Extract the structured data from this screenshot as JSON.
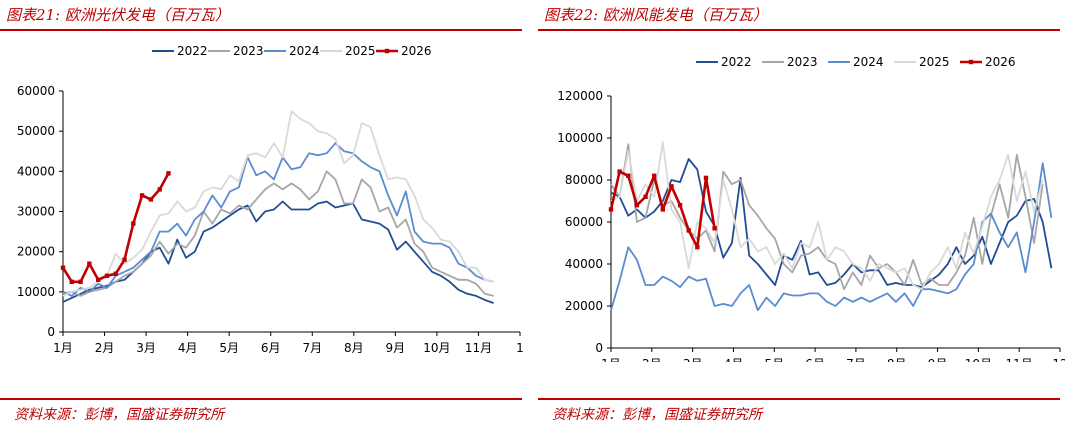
{
  "colors": {
    "2022": "#1f4e96",
    "2023": "#a6a6a6",
    "2024": "#5b8bd0",
    "2025": "#d9d9d9",
    "2026": "#c00000",
    "accent": "#c00000"
  },
  "left": {
    "title": "图表21: 欧洲光伏发电（百万瓦）",
    "source": "资料来源：彭博，国盛证券研究所"
  },
  "right": {
    "title": "图表22: 欧洲风能发电（百万瓦）",
    "source": "资料来源：彭博，国盛证券研究所"
  },
  "chart_data": [
    {
      "type": "line",
      "title": "图表21: 欧洲光伏发电（百万瓦）",
      "ylim": [
        0,
        60000
      ],
      "yticks": [
        0,
        10000,
        20000,
        30000,
        40000,
        50000,
        60000
      ],
      "xlim": [
        1,
        53
      ],
      "xtick_labels": [
        "1月",
        "2月",
        "3月",
        "4月",
        "5月",
        "6月",
        "7月",
        "8月",
        "9月",
        "10月",
        "11月",
        "1"
      ],
      "legend": "top",
      "series": [
        {
          "name": "2022",
          "values": [
            7500,
            8500,
            9500,
            10500,
            11000,
            11500,
            12500,
            13000,
            15000,
            17000,
            20000,
            21000,
            17000,
            23000,
            18500,
            20000,
            25000,
            26000,
            27500,
            29000,
            30500,
            31500,
            27500,
            30000,
            30500,
            32500,
            30500,
            30500,
            30500,
            32000,
            32500,
            31000,
            31500,
            32000,
            28000,
            27500,
            27000,
            25500,
            20500,
            22500,
            20000,
            17500,
            15000,
            14000,
            12500,
            10500,
            9500,
            9000,
            8000,
            7200
          ]
        },
        {
          "name": "2023",
          "values": [
            9500,
            10000,
            9000,
            10000,
            10500,
            11000,
            12500,
            14000,
            15000,
            17000,
            19000,
            22500,
            19500,
            22000,
            21000,
            24000,
            30000,
            27000,
            30500,
            29500,
            31500,
            30500,
            33000,
            35500,
            37000,
            35500,
            37000,
            35500,
            33000,
            35000,
            40000,
            38000,
            32000,
            32000,
            38000,
            36000,
            30000,
            31000,
            26000,
            28000,
            22000,
            20000,
            16000,
            15000,
            14000,
            13000,
            13000,
            12000,
            9500,
            9000
          ]
        },
        {
          "name": "2024",
          "values": [
            10000,
            9000,
            11000,
            10000,
            12000,
            11000,
            14000,
            15000,
            16000,
            18000,
            20000,
            25000,
            25000,
            27000,
            24000,
            28000,
            30000,
            34000,
            31000,
            35000,
            36000,
            43500,
            39000,
            40000,
            38000,
            43500,
            40500,
            41000,
            44500,
            44000,
            44500,
            47000,
            45000,
            44500,
            42500,
            41000,
            40000,
            34000,
            29000,
            35000,
            25000,
            22500,
            22000,
            22000,
            21000,
            17000,
            16000,
            14000,
            13000,
            12500
          ]
        },
        {
          "name": "2025",
          "values": [
            9000,
            10000,
            10500,
            11000,
            12500,
            14000,
            19500,
            17000,
            18500,
            20500,
            25000,
            29000,
            29500,
            32500,
            30000,
            31000,
            35000,
            36000,
            35500,
            39000,
            37500,
            44000,
            44500,
            43500,
            47000,
            43500,
            55000,
            53000,
            52000,
            50000,
            49500,
            48000,
            42000,
            44000,
            52000,
            51000,
            44000,
            38000,
            38500,
            38000,
            34000,
            28000,
            26000,
            23000,
            22500,
            20000,
            16000,
            16000,
            13000,
            12500
          ]
        },
        {
          "name": "2026",
          "values": [
            16000,
            12500,
            12500,
            17000,
            13000,
            14000,
            14500,
            18000,
            27000,
            34000,
            33000,
            35500,
            39500
          ]
        }
      ]
    },
    {
      "type": "line",
      "title": "图表22: 欧洲风能发电（百万瓦）",
      "ylim": [
        0,
        120000
      ],
      "yticks": [
        0,
        20000,
        40000,
        60000,
        80000,
        100000,
        120000
      ],
      "xlim": [
        1,
        53
      ],
      "xtick_labels": [
        "1月",
        "2月",
        "3月",
        "4月",
        "5月",
        "6月",
        "7月",
        "8月",
        "9月",
        "10月",
        "11月",
        "12"
      ],
      "legend": "top",
      "series": [
        {
          "name": "2022",
          "values": [
            74000,
            72000,
            63000,
            66000,
            62000,
            65000,
            70000,
            80000,
            79000,
            90000,
            85000,
            65000,
            58000,
            43000,
            50000,
            81000,
            44000,
            40000,
            35000,
            30000,
            44000,
            42000,
            51000,
            35000,
            36000,
            30000,
            31000,
            35000,
            40000,
            36000,
            37000,
            37000,
            30000,
            31000,
            30000,
            30000,
            29000,
            32000,
            35000,
            40000,
            48000,
            40000,
            44000,
            53000,
            40000,
            50000,
            60000,
            63000,
            70000,
            71000,
            60000,
            38000
          ]
        },
        {
          "name": "2023",
          "values": [
            78000,
            72000,
            97000,
            60000,
            62000,
            80000,
            68000,
            70000,
            62000,
            56000,
            52000,
            56000,
            46000,
            84000,
            78000,
            80000,
            68000,
            63000,
            57000,
            52000,
            40000,
            36000,
            44000,
            45000,
            48000,
            42000,
            40000,
            28000,
            36000,
            30000,
            44000,
            38000,
            40000,
            36000,
            30000,
            42000,
            30000,
            33000,
            30000,
            30000,
            36000,
            44000,
            62000,
            40000,
            63000,
            78000,
            62000,
            92000,
            72000,
            50000,
            78000
          ]
        },
        {
          "name": "2024",
          "values": [
            18000,
            32000,
            48000,
            42000,
            30000,
            30000,
            34000,
            32000,
            29000,
            34000,
            32000,
            33000,
            20000,
            21000,
            20000,
            26000,
            30000,
            18000,
            24000,
            20000,
            26000,
            25000,
            25000,
            26000,
            26000,
            22000,
            20000,
            24000,
            22000,
            24000,
            22000,
            24000,
            26000,
            22000,
            26000,
            20000,
            28000,
            28000,
            27000,
            26000,
            28000,
            35000,
            40000,
            60000,
            64000,
            55000,
            48000,
            55000,
            36000,
            60000,
            88000,
            62000
          ]
        },
        {
          "name": "2025",
          "values": [
            70000,
            72000,
            94000,
            70000,
            78000,
            72000,
            98000,
            66000,
            60000,
            38000,
            60000,
            57000,
            50000,
            80000,
            66000,
            48000,
            52000,
            46000,
            48000,
            40000,
            45000,
            38000,
            50000,
            48000,
            60000,
            42000,
            48000,
            46000,
            40000,
            38000,
            32000,
            40000,
            38000,
            36000,
            38000,
            30000,
            28000,
            36000,
            40000,
            48000,
            38000,
            55000,
            45000,
            58000,
            72000,
            80000,
            92000,
            70000,
            84000,
            65000,
            80000
          ]
        },
        {
          "name": "2026",
          "values": [
            66000,
            84000,
            82000,
            68000,
            72000,
            82000,
            66000,
            77000,
            68000,
            56000,
            48000,
            81000,
            57000
          ]
        }
      ]
    }
  ]
}
